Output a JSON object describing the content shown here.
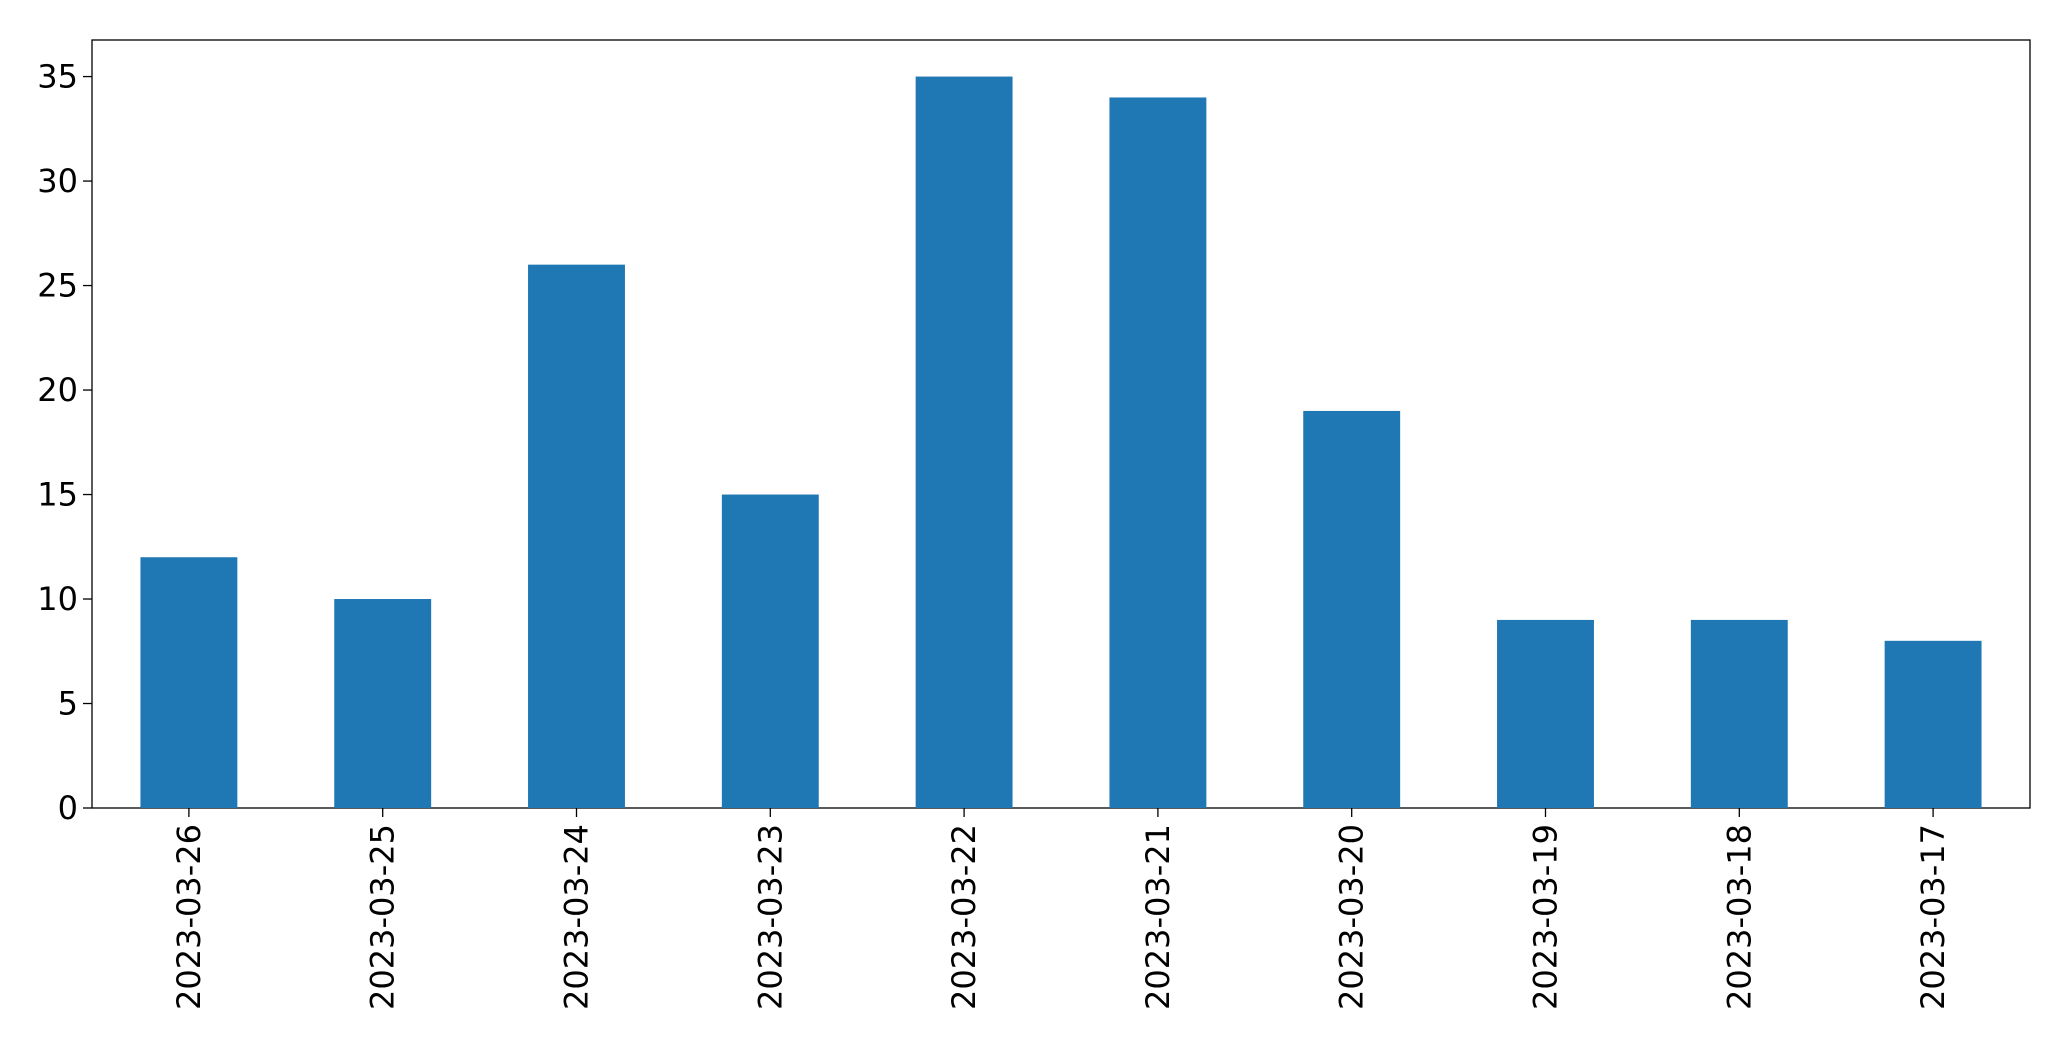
{
  "chart_data": {
    "type": "bar",
    "categories": [
      "2023-03-26",
      "2023-03-25",
      "2023-03-24",
      "2023-03-23",
      "2023-03-22",
      "2023-03-21",
      "2023-03-20",
      "2023-03-19",
      "2023-03-18",
      "2023-03-17"
    ],
    "values": [
      12,
      10,
      26,
      15,
      35,
      34,
      19,
      9,
      9,
      8
    ],
    "color": "#1f77b4",
    "ylim": [
      0,
      36.75
    ],
    "yticks": [
      0,
      5,
      10,
      15,
      20,
      25,
      30,
      35
    ],
    "grid": false
  }
}
